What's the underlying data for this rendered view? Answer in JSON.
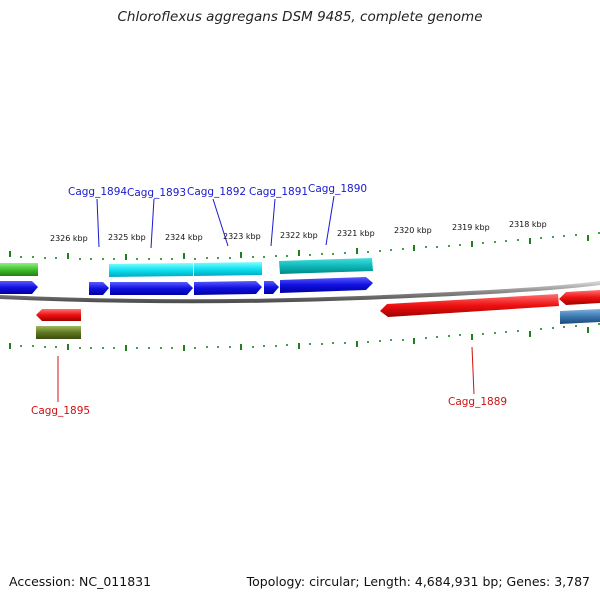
{
  "title": "Chloroflexus aggregans DSM 9485, complete genome",
  "footer": {
    "accession": "Accession: NC_011831",
    "stats": "Topology: circular; Length: 4,684,931 bp; Genes: 3,787"
  },
  "colors": {
    "forward_cds": "#1010e0",
    "forward_rna": "#00d0e0",
    "forward_rna_dark": "#00b0b0",
    "forward_green": "#40c030",
    "reverse_cds": "#ee1010",
    "reverse_olive": "#607820",
    "reverse_steel": "#3a78b0",
    "backbone": "#888888",
    "tick": "#208020",
    "label_forward": "#1a1ad0",
    "label_reverse": "#d01010"
  },
  "scale_labels": [
    "2326 kbp",
    "2325 kbp",
    "2324 kbp",
    "2323 kbp",
    "2322 kbp",
    "2321 kbp",
    "2320 kbp",
    "2319 kbp",
    "2318 kbp"
  ],
  "genes_forward": [
    "Cagg_1894",
    "Cagg_1893",
    "Cagg_1892",
    "Cagg_1891",
    "Cagg_1890"
  ],
  "genes_reverse": [
    "Cagg_1895",
    "Cagg_1889"
  ]
}
